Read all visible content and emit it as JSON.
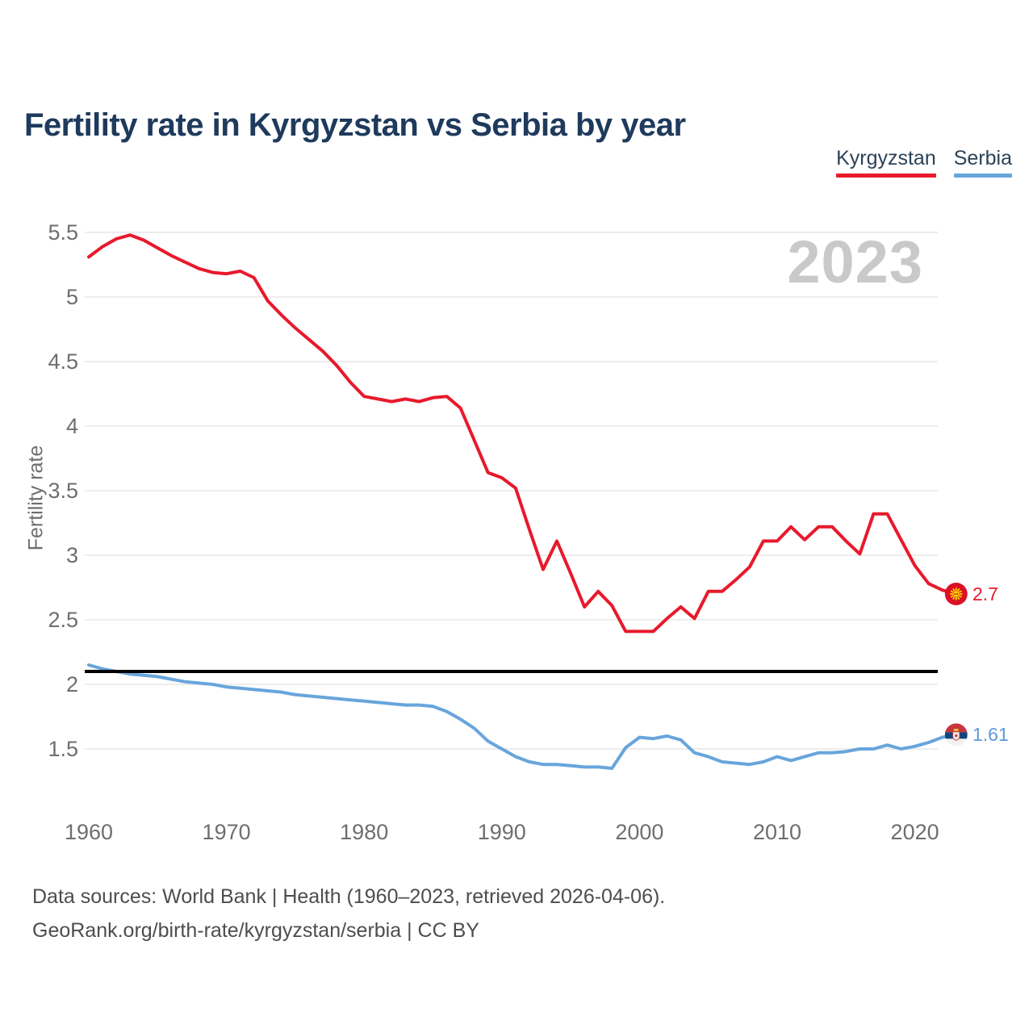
{
  "header": {
    "title": "Fertility rate in Kyrgyzstan vs Serbia by year"
  },
  "footer": {
    "line1": "Data sources: World Bank | Health (1960–2023, retrieved 2026-04-06).",
    "line2": "GeoRank.org/birth-rate/kyrgyzstan/serbia | CC BY"
  },
  "colors": {
    "kyrgyzstan_line": "#e8192c",
    "serbia_line": "#68a5dc",
    "reference_line": "#000000",
    "gridline": "#ededed",
    "tick_text": "#6e6e6e",
    "title_text": "#1e3a5c",
    "watermark_text": "#c9c9c9"
  },
  "chart_data": {
    "type": "line",
    "title": "Fertility rate in Kyrgyzstan vs Serbia by year",
    "watermark": "2023",
    "xlabel": "",
    "ylabel": "Fertility rate",
    "ylim": [
      1.1,
      5.6
    ],
    "grid": "horizontal",
    "legend_position": "top-right",
    "y_ticks": [
      5.5,
      5,
      4.5,
      4,
      3.5,
      3,
      2.5,
      2,
      1.5
    ],
    "y_tick_labels": [
      "5.5",
      "5",
      "4.5",
      "4",
      "3.5",
      "3",
      "2.5",
      "2",
      "1.5"
    ],
    "x_ticks": [
      1960,
      1970,
      1980,
      1990,
      2000,
      2010,
      2020
    ],
    "x_tick_labels": [
      "1960",
      "1970",
      "1980",
      "1990",
      "2000",
      "2010",
      "2020"
    ],
    "reference_line": {
      "value": 2.1,
      "color": "#000000"
    },
    "x": [
      1960,
      1961,
      1962,
      1963,
      1964,
      1965,
      1966,
      1967,
      1968,
      1969,
      1970,
      1971,
      1972,
      1973,
      1974,
      1975,
      1976,
      1977,
      1978,
      1979,
      1980,
      1981,
      1982,
      1983,
      1984,
      1985,
      1986,
      1987,
      1988,
      1989,
      1990,
      1991,
      1992,
      1993,
      1994,
      1995,
      1996,
      1997,
      1998,
      1999,
      2000,
      2001,
      2002,
      2003,
      2004,
      2005,
      2006,
      2007,
      2008,
      2009,
      2010,
      2011,
      2012,
      2013,
      2014,
      2015,
      2016,
      2017,
      2018,
      2019,
      2020,
      2021,
      2022,
      2023
    ],
    "series": [
      {
        "name": "Kyrgyzstan",
        "color": "#e8192c",
        "end_label": "2.7",
        "end_marker": "kyrgyzstan-flag",
        "values": [
          5.31,
          5.39,
          5.45,
          5.48,
          5.44,
          5.38,
          5.32,
          5.27,
          5.22,
          5.19,
          5.18,
          5.2,
          5.15,
          4.97,
          4.86,
          4.76,
          4.67,
          4.58,
          4.47,
          4.34,
          4.23,
          4.21,
          4.19,
          4.21,
          4.19,
          4.22,
          4.23,
          4.14,
          3.89,
          3.64,
          3.6,
          3.52,
          3.2,
          2.89,
          3.11,
          2.86,
          2.6,
          2.72,
          2.61,
          2.41,
          2.41,
          2.41,
          2.51,
          2.6,
          2.51,
          2.72,
          2.72,
          2.81,
          2.91,
          3.11,
          3.11,
          3.22,
          3.12,
          3.22,
          3.22,
          3.11,
          3.01,
          3.32,
          3.32,
          3.12,
          2.92,
          2.78,
          2.73,
          2.7
        ]
      },
      {
        "name": "Serbia",
        "color": "#68a5dc",
        "end_label": "1.61",
        "end_marker": "serbia-flag",
        "values": [
          2.15,
          2.12,
          2.1,
          2.08,
          2.07,
          2.06,
          2.04,
          2.02,
          2.01,
          2.0,
          1.98,
          1.97,
          1.96,
          1.95,
          1.94,
          1.92,
          1.91,
          1.9,
          1.89,
          1.88,
          1.87,
          1.86,
          1.85,
          1.84,
          1.84,
          1.83,
          1.79,
          1.73,
          1.66,
          1.56,
          1.5,
          1.44,
          1.4,
          1.38,
          1.38,
          1.37,
          1.36,
          1.36,
          1.35,
          1.51,
          1.59,
          1.58,
          1.6,
          1.57,
          1.47,
          1.44,
          1.4,
          1.39,
          1.38,
          1.4,
          1.44,
          1.41,
          1.44,
          1.47,
          1.47,
          1.48,
          1.5,
          1.5,
          1.53,
          1.5,
          1.52,
          1.55,
          1.59,
          1.61
        ]
      }
    ]
  }
}
